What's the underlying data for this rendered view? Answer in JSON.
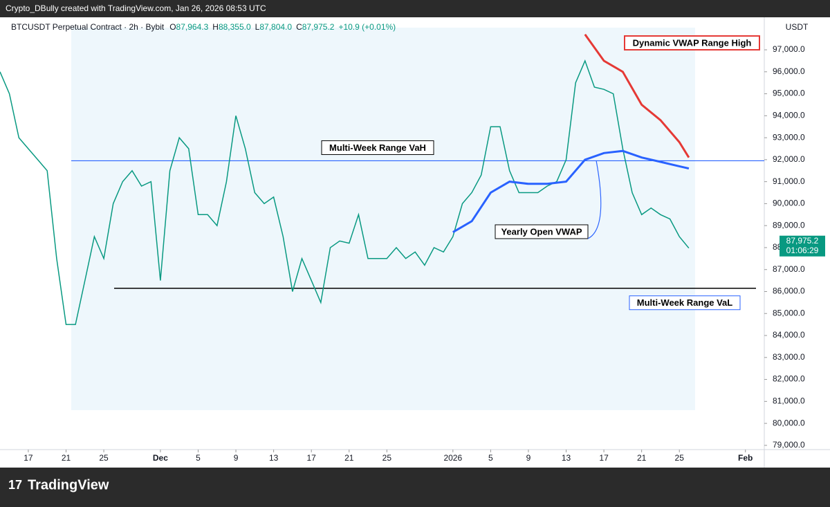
{
  "header": {
    "credit": "Crypto_DBully created with TradingView.com, Jan 26, 2026 08:53 UTC",
    "brand": "TradingView"
  },
  "chart_data": {
    "type": "line",
    "ohlc": [
      {
        "key": "O",
        "text": "87,964.3"
      },
      {
        "key": "H",
        "text": "88,355.0"
      },
      {
        "key": "L",
        "text": "87,804.0"
      },
      {
        "key": "C",
        "text": "87,975.2"
      }
    ],
    "change": "+10.9 (+0.01%)",
    "y_axis_label": "USDT",
    "grid": false,
    "xlim": [
      "2025-11-14",
      "2026-02-03"
    ],
    "xticks": [
      {
        "value": "2025-11-17",
        "label": "17"
      },
      {
        "value": "2025-11-21",
        "label": "21"
      },
      {
        "value": "2025-11-25",
        "label": "25"
      },
      {
        "value": "2025-12-01",
        "label": "Dec"
      },
      {
        "value": "2025-12-05",
        "label": "5"
      },
      {
        "value": "2025-12-09",
        "label": "9"
      },
      {
        "value": "2025-12-13",
        "label": "13"
      },
      {
        "value": "2025-12-17",
        "label": "17"
      },
      {
        "value": "2025-12-21",
        "label": "21"
      },
      {
        "value": "2025-12-25",
        "label": "25"
      },
      {
        "value": "2026-01-01",
        "label": "2026"
      },
      {
        "value": "2026-01-05",
        "label": "5"
      },
      {
        "value": "2026-01-09",
        "label": "9"
      },
      {
        "value": "2026-01-13",
        "label": "13"
      },
      {
        "value": "2026-01-17",
        "label": "17"
      },
      {
        "value": "2026-01-21",
        "label": "21"
      },
      {
        "value": "2026-01-25",
        "label": "25"
      },
      {
        "value": "2026-02-01",
        "label": "Feb"
      }
    ],
    "ylim": [
      78650,
      98480
    ],
    "yticks": [
      {
        "value": 79000,
        "label": "79,000.0"
      },
      {
        "value": 80000,
        "label": "80,000.0"
      },
      {
        "value": 81000,
        "label": "81,000.0"
      },
      {
        "value": 82000,
        "label": "82,000.0"
      },
      {
        "value": 83000,
        "label": "83,000.0"
      },
      {
        "value": 84000,
        "label": "84,000.0"
      },
      {
        "value": 85000,
        "label": "85,000.0"
      },
      {
        "value": 86000,
        "label": "86,000.0"
      },
      {
        "value": 87000,
        "label": "87,000.0"
      },
      {
        "value": 88000,
        "label": "88,000.0"
      },
      {
        "value": 89000,
        "label": "89,000.0"
      },
      {
        "value": 90000,
        "label": "90,000.0"
      },
      {
        "value": 91000,
        "label": "91,000.0"
      },
      {
        "value": 92000,
        "label": "92,000.0"
      },
      {
        "value": 93000,
        "label": "93,000.0"
      },
      {
        "value": 94000,
        "label": "94,000.0"
      },
      {
        "value": 95000,
        "label": "95,000.0"
      },
      {
        "value": 96000,
        "label": "96,000.0"
      },
      {
        "value": 97000,
        "label": "97,000.0"
      }
    ],
    "series": [
      {
        "name": "BTCUSDT Perpetual Contract · 2h · Bybit",
        "color": "#089981",
        "x": [
          "2025-11-14",
          "2025-11-15",
          "2025-11-16",
          "2025-11-17",
          "2025-11-18",
          "2025-11-19",
          "2025-11-20",
          "2025-11-21",
          "2025-11-22",
          "2025-11-23",
          "2025-11-24",
          "2025-11-25",
          "2025-11-26",
          "2025-11-27",
          "2025-11-28",
          "2025-11-29",
          "2025-11-30",
          "2025-12-01",
          "2025-12-02",
          "2025-12-03",
          "2025-12-04",
          "2025-12-05",
          "2025-12-06",
          "2025-12-07",
          "2025-12-08",
          "2025-12-09",
          "2025-12-10",
          "2025-12-11",
          "2025-12-12",
          "2025-12-13",
          "2025-12-14",
          "2025-12-15",
          "2025-12-16",
          "2025-12-17",
          "2025-12-18",
          "2025-12-19",
          "2025-12-20",
          "2025-12-21",
          "2025-12-22",
          "2025-12-23",
          "2025-12-24",
          "2025-12-25",
          "2025-12-26",
          "2025-12-27",
          "2025-12-28",
          "2025-12-29",
          "2025-12-30",
          "2025-12-31",
          "2026-01-01",
          "2026-01-02",
          "2026-01-03",
          "2026-01-04",
          "2026-01-05",
          "2026-01-06",
          "2026-01-07",
          "2026-01-08",
          "2026-01-09",
          "2026-01-10",
          "2026-01-11",
          "2026-01-12",
          "2026-01-13",
          "2026-01-14",
          "2026-01-15",
          "2026-01-16",
          "2026-01-17",
          "2026-01-18",
          "2026-01-19",
          "2026-01-20",
          "2026-01-21",
          "2026-01-22",
          "2026-01-23",
          "2026-01-24",
          "2026-01-25",
          "2026-01-26"
        ],
        "values": [
          96000,
          95000,
          93000,
          92500,
          92000,
          91500,
          87500,
          84500,
          84500,
          86500,
          88500,
          87500,
          90000,
          91000,
          91500,
          90800,
          91000,
          86500,
          91500,
          93000,
          92500,
          89500,
          89500,
          89000,
          91000,
          94000,
          92500,
          90500,
          90000,
          90300,
          88500,
          86000,
          87500,
          86500,
          85500,
          88000,
          88300,
          88200,
          89500,
          87500,
          87500,
          87500,
          88000,
          87500,
          87800,
          87200,
          88000,
          87800,
          88500,
          90000,
          90500,
          91300,
          93500,
          93500,
          91500,
          90500,
          90500,
          90500,
          90800,
          91000,
          92000,
          95500,
          96500,
          95300,
          95200,
          95000,
          92500,
          90500,
          89500,
          89800,
          89500,
          89300,
          88500,
          87975.2
        ]
      },
      {
        "name": "Dynamic VWAP Range High",
        "color": "#e53935",
        "x": [
          "2026-01-15",
          "2026-01-17",
          "2026-01-19",
          "2026-01-21",
          "2026-01-23",
          "2026-01-25",
          "2026-01-26"
        ],
        "values": [
          97700,
          96500,
          96000,
          94500,
          93800,
          92800,
          92100
        ]
      },
      {
        "name": "Yearly Open VWAP",
        "color": "#2962ff",
        "x": [
          "2026-01-01",
          "2026-01-03",
          "2026-01-05",
          "2026-01-07",
          "2026-01-09",
          "2026-01-11",
          "2026-01-13",
          "2026-01-15",
          "2026-01-17",
          "2026-01-19",
          "2026-01-21",
          "2026-01-23",
          "2026-01-25",
          "2026-01-26"
        ],
        "values": [
          88700,
          89200,
          90500,
          91000,
          90900,
          90900,
          91000,
          92000,
          92300,
          92400,
          92100,
          91900,
          91700,
          91600
        ]
      }
    ],
    "levels": [
      {
        "label": "Multi-Week Range VaH",
        "value": 91950,
        "color": "#2962ff"
      },
      {
        "label": "Multi-Week Range VaL",
        "value": 86150,
        "color": "#000000"
      }
    ],
    "last_price": {
      "value": 87975.2,
      "label": "87,975.2"
    },
    "countdown": "01:06:29"
  }
}
